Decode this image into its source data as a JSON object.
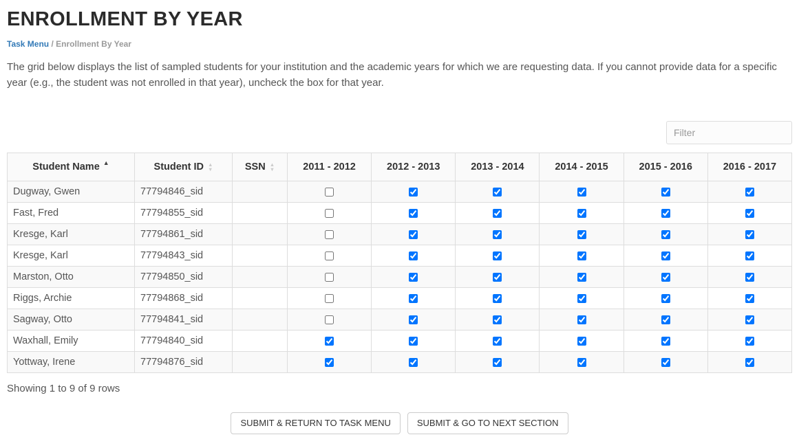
{
  "page": {
    "title": "ENROLLMENT BY YEAR",
    "breadcrumb": {
      "link": "Task Menu",
      "separator": "/",
      "current": "Enrollment By Year"
    },
    "description": "The grid below displays the list of sampled students for your institution and the academic years for which we are requesting data. If you cannot provide data for a specific year (e.g., the student was not enrolled in that year), uncheck the box for that year."
  },
  "filter": {
    "placeholder": "Filter"
  },
  "icons": {
    "sort_asc": "▲",
    "caret_up": "▲",
    "caret_down": "▼"
  },
  "table": {
    "columns": [
      "Student Name",
      "Student ID",
      "SSN",
      "2011 - 2012",
      "2012 - 2013",
      "2013 - 2014",
      "2014 - 2015",
      "2015 - 2016",
      "2016 - 2017"
    ],
    "rows": [
      {
        "name": "Dugway, Gwen",
        "id": "77794846_sid",
        "ssn": "",
        "years": [
          false,
          true,
          true,
          true,
          true,
          true
        ]
      },
      {
        "name": "Fast, Fred",
        "id": "77794855_sid",
        "ssn": "",
        "years": [
          false,
          true,
          true,
          true,
          true,
          true
        ]
      },
      {
        "name": "Kresge, Karl",
        "id": "77794861_sid",
        "ssn": "",
        "years": [
          false,
          true,
          true,
          true,
          true,
          true
        ]
      },
      {
        "name": "Kresge, Karl",
        "id": "77794843_sid",
        "ssn": "",
        "years": [
          false,
          true,
          true,
          true,
          true,
          true
        ]
      },
      {
        "name": "Marston, Otto",
        "id": "77794850_sid",
        "ssn": "",
        "years": [
          false,
          true,
          true,
          true,
          true,
          true
        ]
      },
      {
        "name": "Riggs, Archie",
        "id": "77794868_sid",
        "ssn": "",
        "years": [
          false,
          true,
          true,
          true,
          true,
          true
        ]
      },
      {
        "name": "Sagway, Otto",
        "id": "77794841_sid",
        "ssn": "",
        "years": [
          false,
          true,
          true,
          true,
          true,
          true
        ]
      },
      {
        "name": "Waxhall, Emily",
        "id": "77794840_sid",
        "ssn": "",
        "years": [
          true,
          true,
          true,
          true,
          true,
          true
        ]
      },
      {
        "name": "Yottway, Irene",
        "id": "77794876_sid",
        "ssn": "",
        "years": [
          true,
          true,
          true,
          true,
          true,
          true
        ]
      }
    ]
  },
  "footer": {
    "summary": "Showing 1 to 9 of 9 rows"
  },
  "actions": {
    "submit_return": "SUBMIT & RETURN TO TASK MENU",
    "submit_next": "SUBMIT & GO TO NEXT SECTION"
  }
}
